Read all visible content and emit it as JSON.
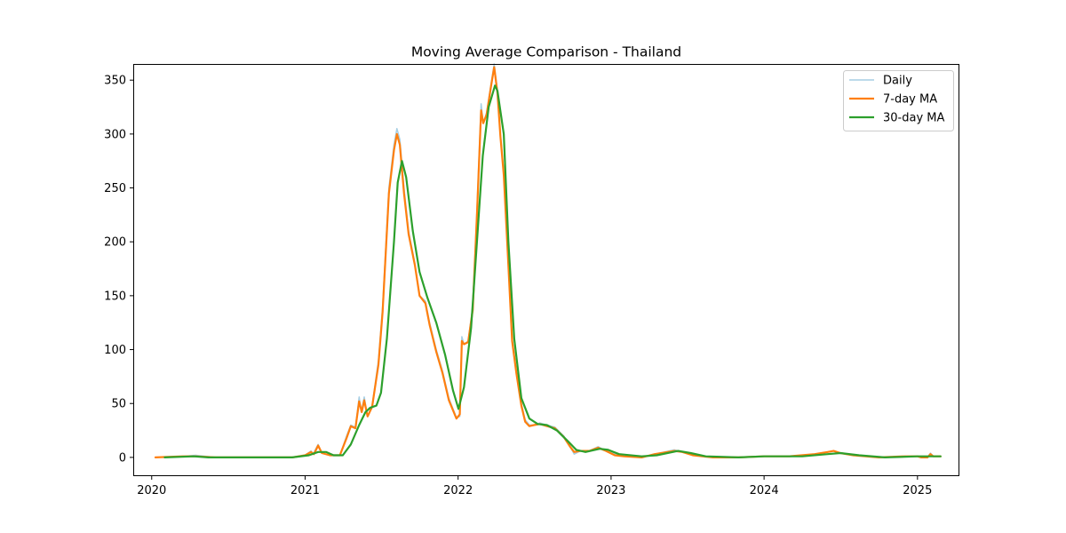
{
  "chart_data": {
    "type": "line",
    "title": "Moving Average Comparison - Thailand",
    "xlabel": "",
    "ylabel": "",
    "x_axis": "date",
    "xlim": [
      "2019-11-18",
      "2025-04-11"
    ],
    "ylim": [
      -17.4,
      365
    ],
    "xticks": [
      {
        "date": "2020-01-01",
        "label": "2020"
      },
      {
        "date": "2021-01-01",
        "label": "2021"
      },
      {
        "date": "2022-01-01",
        "label": "2022"
      },
      {
        "date": "2023-01-01",
        "label": "2023"
      },
      {
        "date": "2024-01-01",
        "label": "2024"
      },
      {
        "date": "2025-01-01",
        "label": "2025"
      }
    ],
    "yticks": [
      0,
      50,
      100,
      150,
      200,
      250,
      300,
      350
    ],
    "grid": false,
    "legend": {
      "position": "top-right",
      "entries": [
        "Daily",
        "7-day MA",
        "30-day MA"
      ]
    },
    "series": [
      {
        "name": "Daily",
        "color": "#a6cee3",
        "points": [
          [
            "2020-01-10",
            0
          ],
          [
            "2020-03-15",
            1
          ],
          [
            "2020-04-15",
            2
          ],
          [
            "2020-06-01",
            0
          ],
          [
            "2020-12-01",
            0
          ],
          [
            "2021-01-01",
            2
          ],
          [
            "2021-01-15",
            6
          ],
          [
            "2021-01-20",
            3
          ],
          [
            "2021-02-01",
            12
          ],
          [
            "2021-02-10",
            4
          ],
          [
            "2021-03-01",
            2
          ],
          [
            "2021-03-25",
            2
          ],
          [
            "2021-04-10",
            20
          ],
          [
            "2021-04-20",
            30
          ],
          [
            "2021-05-01",
            28
          ],
          [
            "2021-05-10",
            56
          ],
          [
            "2021-05-15",
            42
          ],
          [
            "2021-05-22",
            56
          ],
          [
            "2021-05-30",
            38
          ],
          [
            "2021-06-10",
            48
          ],
          [
            "2021-06-25",
            90
          ],
          [
            "2021-07-05",
            140
          ],
          [
            "2021-07-20",
            250
          ],
          [
            "2021-08-01",
            290
          ],
          [
            "2021-08-08",
            305
          ],
          [
            "2021-08-15",
            295
          ],
          [
            "2021-08-25",
            250
          ],
          [
            "2021-09-05",
            210
          ],
          [
            "2021-09-20",
            180
          ],
          [
            "2021-10-01",
            150
          ],
          [
            "2021-10-15",
            145
          ],
          [
            "2021-10-25",
            125
          ],
          [
            "2021-11-10",
            100
          ],
          [
            "2021-11-25",
            80
          ],
          [
            "2021-12-10",
            55
          ],
          [
            "2021-12-28",
            37
          ],
          [
            "2022-01-05",
            38
          ],
          [
            "2022-01-10",
            112
          ],
          [
            "2022-01-15",
            105
          ],
          [
            "2022-01-25",
            108
          ],
          [
            "2022-02-05",
            140
          ],
          [
            "2022-02-15",
            230
          ],
          [
            "2022-02-25",
            328
          ],
          [
            "2022-03-02",
            310
          ],
          [
            "2022-03-10",
            320
          ],
          [
            "2022-03-20",
            345
          ],
          [
            "2022-03-28",
            365
          ],
          [
            "2022-04-05",
            340
          ],
          [
            "2022-04-12",
            300
          ],
          [
            "2022-04-20",
            265
          ],
          [
            "2022-05-01",
            180
          ],
          [
            "2022-05-10",
            110
          ],
          [
            "2022-05-20",
            80
          ],
          [
            "2022-06-01",
            50
          ],
          [
            "2022-06-10",
            35
          ],
          [
            "2022-06-20",
            30
          ],
          [
            "2022-07-01",
            30
          ],
          [
            "2022-07-15",
            32
          ],
          [
            "2022-08-01",
            30
          ],
          [
            "2022-08-20",
            28
          ],
          [
            "2022-09-10",
            20
          ],
          [
            "2022-09-25",
            10
          ],
          [
            "2022-10-05",
            3
          ],
          [
            "2022-10-20",
            6
          ],
          [
            "2022-11-10",
            6
          ],
          [
            "2022-12-01",
            10
          ],
          [
            "2022-12-20",
            6
          ],
          [
            "2023-01-10",
            3
          ],
          [
            "2023-02-01",
            1
          ],
          [
            "2023-03-15",
            0
          ],
          [
            "2023-04-15",
            3
          ],
          [
            "2023-06-01",
            7
          ],
          [
            "2023-06-20",
            5
          ],
          [
            "2023-07-15",
            2
          ],
          [
            "2023-09-01",
            0
          ],
          [
            "2023-11-01",
            0
          ],
          [
            "2024-01-01",
            1
          ],
          [
            "2024-03-01",
            1
          ],
          [
            "2024-05-01",
            3
          ],
          [
            "2024-06-01",
            5
          ],
          [
            "2024-06-15",
            6
          ],
          [
            "2024-07-01",
            4
          ],
          [
            "2024-08-01",
            2
          ],
          [
            "2024-10-01",
            0
          ],
          [
            "2024-12-01",
            1
          ],
          [
            "2025-01-01",
            1
          ],
          [
            "2025-01-10",
            0
          ],
          [
            "2025-01-25",
            0
          ],
          [
            "2025-02-01",
            4
          ],
          [
            "2025-02-08",
            1
          ],
          [
            "2025-02-25",
            1
          ]
        ]
      },
      {
        "name": "7-day MA",
        "color": "#ff7f0e",
        "points": [
          [
            "2020-01-10",
            0
          ],
          [
            "2020-03-15",
            1
          ],
          [
            "2020-04-15",
            1
          ],
          [
            "2020-06-01",
            0
          ],
          [
            "2020-12-01",
            0
          ],
          [
            "2021-01-01",
            2
          ],
          [
            "2021-01-15",
            5
          ],
          [
            "2021-01-22",
            3
          ],
          [
            "2021-02-01",
            11
          ],
          [
            "2021-02-10",
            4
          ],
          [
            "2021-03-01",
            2
          ],
          [
            "2021-03-25",
            2
          ],
          [
            "2021-04-10",
            18
          ],
          [
            "2021-04-20",
            29
          ],
          [
            "2021-05-01",
            27
          ],
          [
            "2021-05-10",
            52
          ],
          [
            "2021-05-16",
            42
          ],
          [
            "2021-05-22",
            53
          ],
          [
            "2021-05-30",
            38
          ],
          [
            "2021-06-10",
            47
          ],
          [
            "2021-06-25",
            86
          ],
          [
            "2021-07-05",
            135
          ],
          [
            "2021-07-20",
            245
          ],
          [
            "2021-08-01",
            285
          ],
          [
            "2021-08-08",
            300
          ],
          [
            "2021-08-15",
            290
          ],
          [
            "2021-08-25",
            245
          ],
          [
            "2021-09-05",
            207
          ],
          [
            "2021-09-20",
            178
          ],
          [
            "2021-10-01",
            150
          ],
          [
            "2021-10-15",
            143
          ],
          [
            "2021-10-25",
            123
          ],
          [
            "2021-11-10",
            98
          ],
          [
            "2021-11-25",
            78
          ],
          [
            "2021-12-10",
            53
          ],
          [
            "2021-12-28",
            36
          ],
          [
            "2022-01-05",
            40
          ],
          [
            "2022-01-10",
            108
          ],
          [
            "2022-01-15",
            105
          ],
          [
            "2022-01-25",
            107
          ],
          [
            "2022-02-05",
            137
          ],
          [
            "2022-02-15",
            225
          ],
          [
            "2022-02-25",
            322
          ],
          [
            "2022-03-02",
            310
          ],
          [
            "2022-03-10",
            318
          ],
          [
            "2022-03-20",
            343
          ],
          [
            "2022-03-28",
            362
          ],
          [
            "2022-04-05",
            338
          ],
          [
            "2022-04-12",
            298
          ],
          [
            "2022-04-20",
            262
          ],
          [
            "2022-05-01",
            178
          ],
          [
            "2022-05-10",
            108
          ],
          [
            "2022-05-20",
            78
          ],
          [
            "2022-06-01",
            48
          ],
          [
            "2022-06-10",
            33
          ],
          [
            "2022-06-20",
            29
          ],
          [
            "2022-07-01",
            30
          ],
          [
            "2022-07-15",
            31
          ],
          [
            "2022-08-01",
            29
          ],
          [
            "2022-08-20",
            27
          ],
          [
            "2022-09-10",
            19
          ],
          [
            "2022-09-25",
            10
          ],
          [
            "2022-10-05",
            5
          ],
          [
            "2022-10-20",
            6
          ],
          [
            "2022-11-10",
            6
          ],
          [
            "2022-12-01",
            9
          ],
          [
            "2022-12-20",
            6
          ],
          [
            "2023-01-10",
            2
          ],
          [
            "2023-02-01",
            1
          ],
          [
            "2023-03-15",
            0
          ],
          [
            "2023-04-15",
            3
          ],
          [
            "2023-06-01",
            6
          ],
          [
            "2023-06-20",
            5
          ],
          [
            "2023-07-15",
            2
          ],
          [
            "2023-09-01",
            0
          ],
          [
            "2023-11-01",
            0
          ],
          [
            "2024-01-01",
            1
          ],
          [
            "2024-03-01",
            1
          ],
          [
            "2024-05-01",
            3
          ],
          [
            "2024-06-01",
            5
          ],
          [
            "2024-06-15",
            6
          ],
          [
            "2024-07-01",
            4
          ],
          [
            "2024-08-01",
            2
          ],
          [
            "2024-10-01",
            0
          ],
          [
            "2024-12-01",
            1
          ],
          [
            "2025-01-01",
            1
          ],
          [
            "2025-01-10",
            0
          ],
          [
            "2025-01-25",
            0
          ],
          [
            "2025-02-01",
            3
          ],
          [
            "2025-02-08",
            1
          ],
          [
            "2025-02-25",
            1
          ]
        ]
      },
      {
        "name": "30-day MA",
        "color": "#2ca02c",
        "points": [
          [
            "2020-02-01",
            0
          ],
          [
            "2020-04-10",
            1
          ],
          [
            "2020-05-15",
            0
          ],
          [
            "2020-12-01",
            0
          ],
          [
            "2021-01-10",
            2
          ],
          [
            "2021-02-01",
            5
          ],
          [
            "2021-02-20",
            5
          ],
          [
            "2021-03-10",
            2
          ],
          [
            "2021-04-01",
            2
          ],
          [
            "2021-04-20",
            12
          ],
          [
            "2021-05-10",
            30
          ],
          [
            "2021-05-25",
            42
          ],
          [
            "2021-06-05",
            46
          ],
          [
            "2021-06-20",
            48
          ],
          [
            "2021-07-01",
            60
          ],
          [
            "2021-07-15",
            110
          ],
          [
            "2021-08-01",
            200
          ],
          [
            "2021-08-10",
            255
          ],
          [
            "2021-08-20",
            275
          ],
          [
            "2021-08-30",
            260
          ],
          [
            "2021-09-15",
            210
          ],
          [
            "2021-10-01",
            172
          ],
          [
            "2021-10-20",
            148
          ],
          [
            "2021-11-10",
            125
          ],
          [
            "2021-12-01",
            95
          ],
          [
            "2021-12-20",
            62
          ],
          [
            "2022-01-02",
            45
          ],
          [
            "2022-01-15",
            65
          ],
          [
            "2022-02-01",
            120
          ],
          [
            "2022-02-15",
            200
          ],
          [
            "2022-03-01",
            280
          ],
          [
            "2022-03-15",
            325
          ],
          [
            "2022-03-30",
            345
          ],
          [
            "2022-04-05",
            340
          ],
          [
            "2022-04-20",
            300
          ],
          [
            "2022-05-01",
            200
          ],
          [
            "2022-05-15",
            110
          ],
          [
            "2022-06-01",
            55
          ],
          [
            "2022-06-20",
            36
          ],
          [
            "2022-07-10",
            31
          ],
          [
            "2022-08-01",
            30
          ],
          [
            "2022-08-25",
            25
          ],
          [
            "2022-09-20",
            15
          ],
          [
            "2022-10-10",
            7
          ],
          [
            "2022-11-01",
            5
          ],
          [
            "2022-12-05",
            8
          ],
          [
            "2022-12-25",
            7
          ],
          [
            "2023-01-20",
            3
          ],
          [
            "2023-03-15",
            1
          ],
          [
            "2023-04-20",
            2
          ],
          [
            "2023-06-10",
            6
          ],
          [
            "2023-07-10",
            4
          ],
          [
            "2023-08-15",
            1
          ],
          [
            "2023-11-01",
            0
          ],
          [
            "2024-01-01",
            1
          ],
          [
            "2024-04-01",
            1
          ],
          [
            "2024-06-01",
            3
          ],
          [
            "2024-07-01",
            4
          ],
          [
            "2024-08-15",
            2
          ],
          [
            "2024-10-15",
            0
          ],
          [
            "2025-01-01",
            1
          ],
          [
            "2025-01-20",
            1
          ],
          [
            "2025-02-25",
            1
          ]
        ]
      }
    ]
  }
}
